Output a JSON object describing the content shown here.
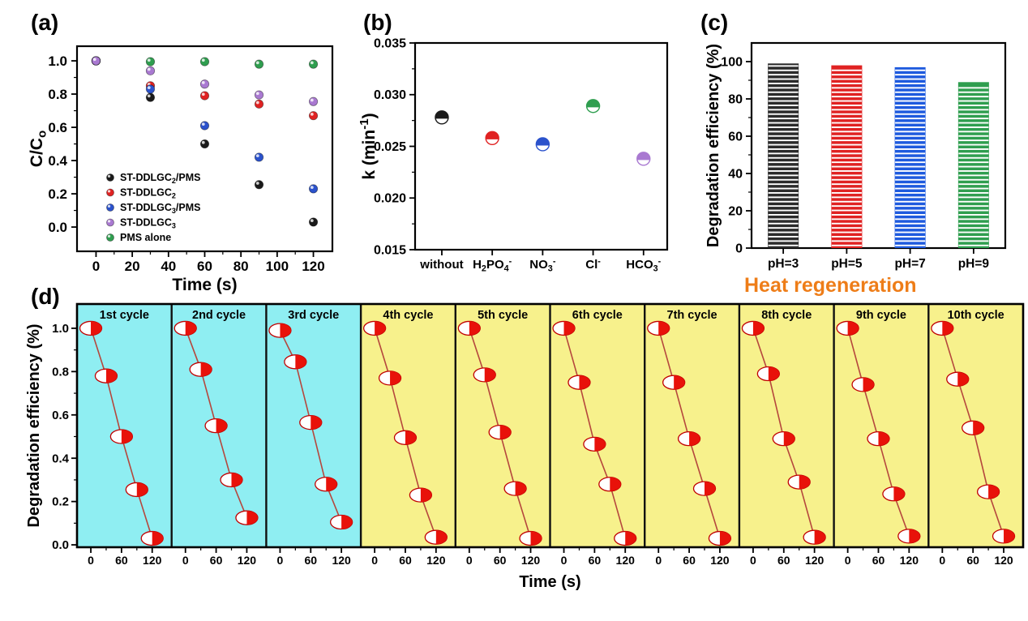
{
  "figure": {
    "background": "#ffffff",
    "panel_labels": {
      "a": "(a)",
      "b": "(b)",
      "c": "(c)",
      "d": "(d)"
    },
    "heat_regeneration": {
      "text": "Heat regeneration",
      "color": "#ee7d18"
    }
  },
  "chart_data": [
    {
      "id": "a",
      "type": "scatter",
      "xlabel": "Time (s)",
      "ylabel_rich": [
        {
          "t": "C/C"
        },
        {
          "t": "o",
          "sub": true
        }
      ],
      "xlim": [
        -10.5,
        130.5
      ],
      "ylim": [
        -0.146,
        1.088
      ],
      "xticks": [
        0,
        20,
        40,
        60,
        80,
        100,
        120
      ],
      "xtick_labels": [
        "0",
        "20",
        "40",
        "60",
        "80",
        "100",
        "120"
      ],
      "yticks": [
        0,
        0.2,
        0.4,
        0.6,
        0.8,
        1
      ],
      "ytick_labels": [
        "0.0",
        "0.2",
        "0.4",
        "0.6",
        "0.8",
        "1.0"
      ],
      "x": [
        0,
        30,
        60,
        90,
        120
      ],
      "z_order": [
        0,
        1,
        2,
        4,
        3
      ],
      "series": [
        {
          "id": "st-ddlgc2-pms",
          "name_rich": [
            {
              "t": "ST-DDLGC"
            },
            {
              "t": "2",
              "sub": true
            },
            {
              "t": "/PMS"
            }
          ],
          "color": "#1a1a1a",
          "values": [
            1.0,
            0.78,
            0.5,
            0.255,
            0.03
          ]
        },
        {
          "id": "st-ddlgc2",
          "name_rich": [
            {
              "t": "ST-DDLGC"
            },
            {
              "t": "2",
              "sub": true
            }
          ],
          "color": "#e02222",
          "values": [
            1.0,
            0.85,
            0.79,
            0.74,
            0.67
          ]
        },
        {
          "id": "st-ddlgc3-pms",
          "name_rich": [
            {
              "t": "ST-DDLGC"
            },
            {
              "t": "3",
              "sub": true
            },
            {
              "t": "/PMS"
            }
          ],
          "color": "#2b52cc",
          "values": [
            1.0,
            0.83,
            0.61,
            0.42,
            0.23
          ]
        },
        {
          "id": "st-ddlgc3",
          "name_rich": [
            {
              "t": "ST-DDLGC"
            },
            {
              "t": "3",
              "sub": true
            }
          ],
          "color": "#a979d1",
          "values": [
            1.0,
            0.94,
            0.86,
            0.795,
            0.755
          ]
        },
        {
          "id": "pms-alone",
          "name_rich": [
            {
              "t": "PMS alone"
            }
          ],
          "color": "#2f9e4f",
          "values": [
            1.0,
            0.995,
            0.995,
            0.98,
            0.98
          ]
        }
      ],
      "legend_position": "lower-left"
    },
    {
      "id": "b",
      "type": "scatter-categorical",
      "ylabel_rich": [
        {
          "t": "k (min"
        },
        {
          "t": "-1",
          "sup": true
        },
        {
          "t": ")"
        }
      ],
      "ylim": [
        0.015,
        0.035
      ],
      "yticks": [
        0.015,
        0.02,
        0.025,
        0.03,
        0.035
      ],
      "ytick_labels": [
        "0.015",
        "0.020",
        "0.025",
        "0.030",
        "0.035"
      ],
      "categories_rich": [
        [
          {
            "t": "without"
          }
        ],
        [
          {
            "t": "H"
          },
          {
            "t": "2",
            "sub": true
          },
          {
            "t": "PO"
          },
          {
            "t": "4",
            "sub": true
          },
          {
            "t": "-",
            "sup": true
          }
        ],
        [
          {
            "t": "NO"
          },
          {
            "t": "3",
            "sub": true
          },
          {
            "t": "-",
            "sup": true
          }
        ],
        [
          {
            "t": "Cl"
          },
          {
            "t": "-",
            "sup": true
          }
        ],
        [
          {
            "t": "HCO"
          },
          {
            "t": "3",
            "sub": true
          },
          {
            "t": "-",
            "sup": true
          }
        ]
      ],
      "values": [
        0.0278,
        0.0258,
        0.0252,
        0.0289,
        0.0238
      ],
      "colors": [
        "#1a1a1a",
        "#e02222",
        "#2b52cc",
        "#2f9e4f",
        "#a979d1"
      ]
    },
    {
      "id": "c",
      "type": "bar",
      "ylabel": "Degradation efficiency (%)",
      "ylim": [
        0,
        110
      ],
      "yticks": [
        0,
        20,
        40,
        60,
        80,
        100
      ],
      "ytick_labels": [
        "0",
        "20",
        "40",
        "60",
        "80",
        "100"
      ],
      "categories": [
        "pH=3",
        "pH=5",
        "pH=7",
        "pH=9"
      ],
      "values": [
        99,
        98,
        97,
        89
      ],
      "colors": [
        "#2b2b2b",
        "#e02222",
        "#1e5ade",
        "#2f9e4f"
      ],
      "stripe_color": "#ffffff"
    },
    {
      "id": "d",
      "type": "line-cycles",
      "ylabel": "Degradation efficiency (%)",
      "xlabel": "Time (s)",
      "x": [
        0,
        30,
        60,
        90,
        120
      ],
      "xticks": [
        0,
        60,
        120
      ],
      "xtick_labels": [
        "0",
        "60",
        "120"
      ],
      "yticks": [
        0,
        0.2,
        0.4,
        0.6,
        0.8,
        1
      ],
      "ytick_labels": [
        "0.0",
        "0.2",
        "0.4",
        "0.6",
        "0.8",
        "1.0"
      ],
      "marker_fill": "#e8120a",
      "marker_edge": "#c00000",
      "line_color": "#b5473d",
      "bg_cyan": "#8feef2",
      "bg_yellow": "#f7f18c",
      "cycles": [
        {
          "label": "1st cycle",
          "bg": "cyan",
          "values": [
            1.0,
            0.78,
            0.5,
            0.255,
            0.03
          ]
        },
        {
          "label": "2nd cycle",
          "bg": "cyan",
          "values": [
            1.0,
            0.81,
            0.55,
            0.3,
            0.125
          ]
        },
        {
          "label": "3rd cycle",
          "bg": "cyan",
          "values": [
            0.99,
            0.845,
            0.565,
            0.28,
            0.105
          ]
        },
        {
          "label": "4th cycle",
          "bg": "yellow",
          "values": [
            1.0,
            0.77,
            0.495,
            0.23,
            0.035
          ]
        },
        {
          "label": "5th cycle",
          "bg": "yellow",
          "values": [
            1.0,
            0.785,
            0.52,
            0.26,
            0.03
          ]
        },
        {
          "label": "6th cycle",
          "bg": "yellow",
          "values": [
            1.0,
            0.75,
            0.465,
            0.28,
            0.03
          ]
        },
        {
          "label": "7th cycle",
          "bg": "yellow",
          "values": [
            1.0,
            0.75,
            0.49,
            0.26,
            0.03
          ]
        },
        {
          "label": "8th cycle",
          "bg": "yellow",
          "values": [
            1.0,
            0.79,
            0.49,
            0.29,
            0.035
          ]
        },
        {
          "label": "9th cycle",
          "bg": "yellow",
          "values": [
            1.0,
            0.74,
            0.49,
            0.235,
            0.04
          ]
        },
        {
          "label": "10th cycle",
          "bg": "yellow",
          "values": [
            1.0,
            0.765,
            0.54,
            0.245,
            0.04
          ]
        }
      ]
    }
  ]
}
